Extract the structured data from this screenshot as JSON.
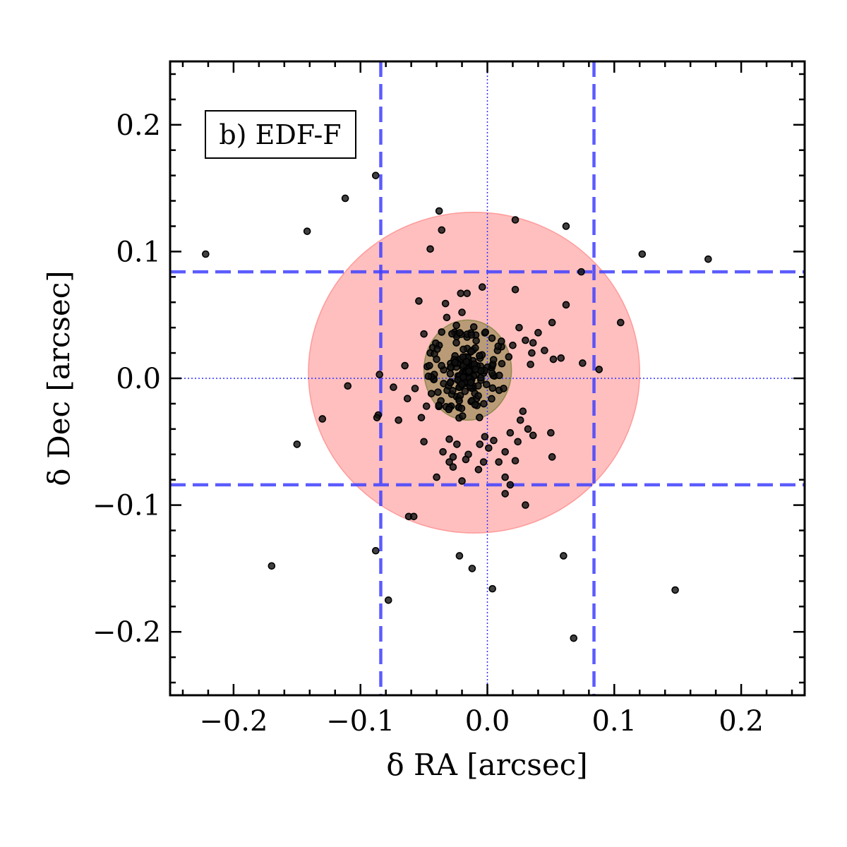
{
  "chart_data": {
    "type": "scatter",
    "panel_label": "b) EDF-F",
    "xlabel": "δ RA [arcsec]",
    "ylabel": "δ Dec [arcsec]",
    "xlim": [
      -0.25,
      0.25
    ],
    "ylim": [
      -0.25,
      0.25
    ],
    "xticks": [
      -0.2,
      -0.1,
      0.0,
      0.1,
      0.2
    ],
    "yticks": [
      -0.2,
      -0.1,
      0.0,
      0.1,
      0.2
    ],
    "xtick_labels": [
      "−0.2",
      "−0.1",
      "0.0",
      "0.1",
      "0.2"
    ],
    "ytick_labels": [
      "−0.2",
      "−0.1",
      "0.0",
      "0.1",
      "0.2"
    ],
    "grid": false,
    "ellipses": [
      {
        "cx": -0.0105,
        "cy": 0.0045,
        "rx": 0.1305,
        "ry": 0.1265,
        "color": "#ff8a8a",
        "opacity": 0.55
      },
      {
        "cx": -0.0155,
        "cy": 0.0065,
        "rx": 0.0345,
        "ry": 0.0395,
        "color": "#7f7f3c",
        "opacity": 0.55
      }
    ],
    "dashed_lines": {
      "x": [
        -0.084,
        0.084
      ],
      "y": [
        0.084,
        -0.084
      ],
      "color": "#4040ff"
    },
    "dotted_lines": {
      "x": [
        0.0
      ],
      "y": [
        0.0
      ],
      "color": "#3030ff"
    },
    "points": {
      "color": "#111111",
      "outer": [
        [
          -0.222,
          0.098
        ],
        [
          -0.142,
          0.116
        ],
        [
          -0.112,
          0.142
        ],
        [
          -0.088,
          0.16
        ],
        [
          -0.038,
          0.132
        ],
        [
          -0.036,
          0.117
        ],
        [
          -0.045,
          0.102
        ],
        [
          0.022,
          0.125
        ],
        [
          0.062,
          0.12
        ],
        [
          0.122,
          0.098
        ],
        [
          0.174,
          0.094
        ],
        [
          0.074,
          0.084
        ],
        [
          -0.17,
          -0.148
        ],
        [
          -0.088,
          -0.136
        ],
        [
          -0.078,
          -0.175
        ],
        [
          -0.022,
          -0.14
        ],
        [
          -0.012,
          -0.15
        ],
        [
          0.004,
          -0.166
        ],
        [
          0.06,
          -0.14
        ],
        [
          0.068,
          -0.205
        ],
        [
          0.148,
          -0.167
        ],
        [
          -0.15,
          -0.052
        ],
        [
          -0.13,
          -0.032
        ],
        [
          -0.11,
          -0.006
        ],
        [
          -0.086,
          -0.029
        ],
        [
          -0.087,
          -0.031
        ],
        [
          -0.085,
          0.003
        ],
        [
          -0.062,
          -0.109
        ],
        [
          -0.058,
          -0.109
        ],
        [
          0.03,
          -0.1
        ],
        [
          0.014,
          -0.091
        ],
        [
          0.105,
          0.044
        ],
        [
          0.088,
          0.007
        ],
        [
          0.075,
          0.012
        ],
        [
          0.062,
          0.058
        ]
      ],
      "mid": [
        [
          -0.054,
          0.061
        ],
        [
          -0.032,
          0.048
        ],
        [
          -0.021,
          0.067
        ],
        [
          -0.016,
          0.067
        ],
        [
          -0.004,
          0.072
        ],
        [
          0.022,
          0.07
        ],
        [
          -0.033,
          0.059
        ],
        [
          -0.02,
          0.052
        ],
        [
          0.04,
          0.036
        ],
        [
          0.051,
          0.044
        ],
        [
          0.045,
          0.022
        ],
        [
          0.058,
          0.016
        ],
        [
          0.052,
          0.015
        ],
        [
          0.036,
          0.028
        ],
        [
          0.03,
          0.03
        ],
        [
          0.034,
          0.011
        ],
        [
          0.025,
          0.04
        ],
        [
          0.02,
          0.026
        ],
        [
          -0.065,
          0.01
        ],
        [
          -0.057,
          -0.008
        ],
        [
          -0.063,
          -0.016
        ],
        [
          -0.074,
          -0.007
        ],
        [
          -0.05,
          0.035
        ],
        [
          -0.045,
          0.02
        ],
        [
          -0.07,
          -0.033
        ],
        [
          -0.05,
          -0.05
        ],
        [
          -0.03,
          -0.048
        ],
        [
          -0.024,
          -0.052
        ],
        [
          -0.027,
          -0.062
        ],
        [
          -0.015,
          -0.06
        ],
        [
          -0.03,
          -0.066
        ],
        [
          -0.017,
          -0.064
        ],
        [
          -0.003,
          -0.066
        ],
        [
          0.001,
          -0.055
        ],
        [
          -0.006,
          -0.052
        ],
        [
          -0.002,
          -0.046
        ],
        [
          0.005,
          -0.049
        ],
        [
          0.014,
          -0.058
        ],
        [
          0.018,
          -0.043
        ],
        [
          0.009,
          -0.066
        ],
        [
          0.022,
          -0.065
        ],
        [
          0.024,
          -0.05
        ],
        [
          0.036,
          -0.045
        ],
        [
          0.032,
          -0.04
        ],
        [
          0.05,
          -0.043
        ],
        [
          0.051,
          -0.062
        ],
        [
          0.026,
          -0.033
        ],
        [
          0.028,
          -0.026
        ],
        [
          0.014,
          -0.078
        ],
        [
          0.018,
          -0.084
        ],
        [
          -0.02,
          -0.081
        ],
        [
          -0.04,
          -0.078
        ],
        [
          -0.035,
          -0.058
        ],
        [
          -0.007,
          -0.072
        ],
        [
          -0.027,
          -0.07
        ],
        [
          -0.048,
          -0.022
        ],
        [
          -0.052,
          -0.031
        ],
        [
          0.035,
          0.02
        ],
        [
          0.008,
          0.022
        ],
        [
          -0.038,
          0.026
        ]
      ],
      "core": {
        "center": [
          -0.0155,
          0.0065
        ],
        "count": 200,
        "radius": [
          0.034,
          0.039
        ]
      }
    }
  }
}
